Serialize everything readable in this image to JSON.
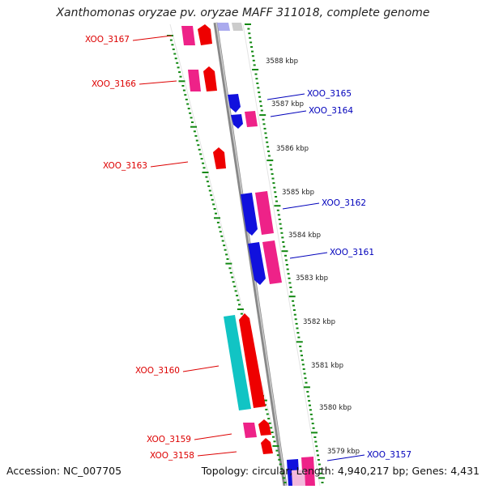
{
  "title": "Xanthomonas oryzae pv. oryzae MAFF 311018, complete genome",
  "accession": "Accession: NC_007705",
  "topology": "Topology: circular; Length: 4,940,217 bp; Genes: 4,431",
  "kbp_labels": [
    {
      "label": "3588 kbp"
    },
    {
      "label": "3587 kbp"
    },
    {
      "label": "3586 kbp"
    },
    {
      "label": "3585 kbp"
    },
    {
      "label": "3584 kbp"
    },
    {
      "label": "3583 kbp"
    },
    {
      "label": "3582 kbp"
    },
    {
      "label": "3581 kbp"
    },
    {
      "label": "3580 kbp"
    },
    {
      "label": "3579 kbp"
    }
  ],
  "genes_left": [
    {
      "label": "XOO_3167"
    },
    {
      "label": "XOO_3166"
    },
    {
      "label": "XOO_3163"
    },
    {
      "label": "XOO_3160"
    },
    {
      "label": "XOO_3159"
    },
    {
      "label": "XOO_3158"
    }
  ],
  "genes_right": [
    {
      "label": "XOO_3165"
    },
    {
      "label": "XOO_3164"
    },
    {
      "label": "XOO_3162"
    },
    {
      "label": "XOO_3161"
    },
    {
      "label": "XOO_3157"
    }
  ],
  "colors": {
    "left_label": "#dd0000",
    "right_label": "#0000bb",
    "red": "#ee0000",
    "pink": "#ee2288",
    "blue": "#1111dd",
    "cyan": "#11c4c4",
    "tick": "#118811"
  }
}
